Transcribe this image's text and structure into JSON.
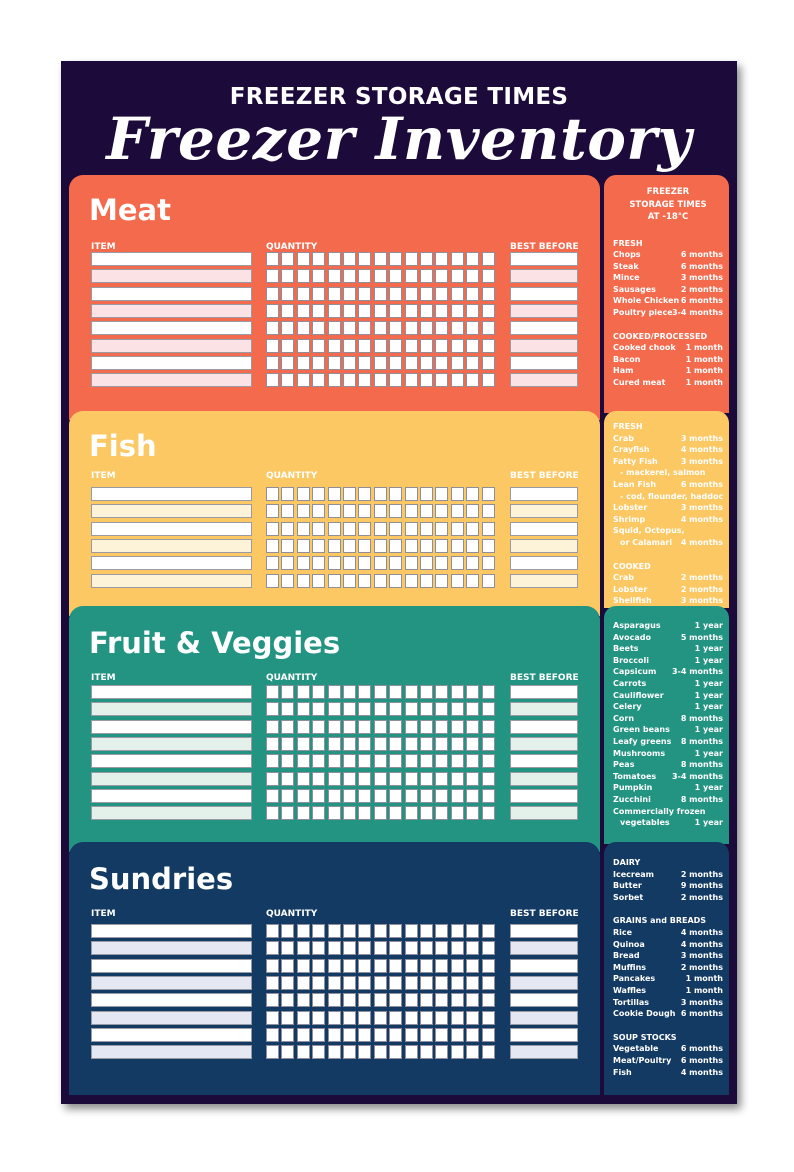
{
  "header": {
    "top_title": "FREEZER STORAGE TIMES",
    "script_title": "Freezer Inventory"
  },
  "columns": {
    "item": "ITEM",
    "quantity": "QUANTITY",
    "best_before": "BEST BEFORE"
  },
  "colors": {
    "background": "#1b0a3a",
    "meat": "#f46a4d",
    "fish": "#fbc863",
    "fruit_veggies": "#239482",
    "sundries": "#133a63"
  },
  "sections": {
    "meat": {
      "title": "Meat",
      "rows": 8,
      "quantity_cells": 15
    },
    "fish": {
      "title": "Fish",
      "rows": 6,
      "quantity_cells": 15
    },
    "veg": {
      "title": "Fruit & Veggies",
      "rows": 8,
      "quantity_cells": 15
    },
    "sund": {
      "title": "Sundries",
      "rows": 8,
      "quantity_cells": 15
    }
  },
  "side": {
    "meat": {
      "title_lines": [
        "FREEZER",
        "STORAGE TIMES",
        "AT -18°C"
      ],
      "groups": [
        {
          "heading": "FRESH",
          "items": [
            {
              "label": "Chops",
              "value": "6 months"
            },
            {
              "label": "Steak",
              "value": "6 months"
            },
            {
              "label": "Mince",
              "value": "3 months"
            },
            {
              "label": "Sausages",
              "value": "2 months"
            },
            {
              "label": "Whole Chicken",
              "value": "6 months"
            },
            {
              "label": "Poultry pieces",
              "value": "3-4 months"
            }
          ]
        },
        {
          "heading": "COOKED/PROCESSED",
          "items": [
            {
              "label": "Cooked chook",
              "value": "1 month"
            },
            {
              "label": "Bacon",
              "value": "1 month"
            },
            {
              "label": "Ham",
              "value": "1 month"
            },
            {
              "label": "Cured meat",
              "value": "1 month"
            }
          ]
        }
      ]
    },
    "fish": {
      "groups": [
        {
          "heading": "FRESH",
          "items": [
            {
              "label": "Crab",
              "value": "3 months"
            },
            {
              "label": "Crayfish",
              "value": "4 months"
            },
            {
              "label": "Fatty Fish",
              "value": "3 months"
            },
            {
              "label": "- mackerel, salmon",
              "value": "",
              "cont": true
            },
            {
              "label": "Lean Fish",
              "value": "6 months"
            },
            {
              "label": "- cod, flounder, haddock",
              "value": "",
              "cont": true
            },
            {
              "label": "Lobster",
              "value": "3 months"
            },
            {
              "label": "Shrimp",
              "value": "4 months"
            },
            {
              "label": "Squid, Octopus,",
              "value": ""
            },
            {
              "label": "or Calamari",
              "value": "4 months",
              "cont": true
            }
          ]
        },
        {
          "heading": "COOKED",
          "items": [
            {
              "label": "Crab",
              "value": "2 months"
            },
            {
              "label": "Lobster",
              "value": "2 months"
            },
            {
              "label": "Shellfish",
              "value": "3 months"
            }
          ]
        }
      ]
    },
    "veg": {
      "groups": [
        {
          "heading": "",
          "items": [
            {
              "label": "Asparagus",
              "value": "1 year"
            },
            {
              "label": "Avocado",
              "value": "5 months"
            },
            {
              "label": "Beets",
              "value": "1 year"
            },
            {
              "label": "Broccoli",
              "value": "1 year"
            },
            {
              "label": "Capsicum",
              "value": "3-4 months"
            },
            {
              "label": "Carrots",
              "value": "1 year"
            },
            {
              "label": "Cauliflower",
              "value": "1 year"
            },
            {
              "label": "Celery",
              "value": "1 year"
            },
            {
              "label": "Corn",
              "value": "8 months"
            },
            {
              "label": "Green beans",
              "value": "1 year"
            },
            {
              "label": "Leafy greens",
              "value": "8 months"
            },
            {
              "label": "Mushrooms",
              "value": "1 year"
            },
            {
              "label": "Peas",
              "value": "8 months"
            },
            {
              "label": "Tomatoes",
              "value": "3-4 months"
            },
            {
              "label": "Pumpkin",
              "value": "1 year"
            },
            {
              "label": "Zucchini",
              "value": "8 months"
            },
            {
              "label": "Commercially frozen",
              "value": ""
            },
            {
              "label": "vegetables",
              "value": "1 year",
              "cont": true
            }
          ]
        }
      ]
    },
    "sund": {
      "groups": [
        {
          "heading": "DAIRY",
          "items": [
            {
              "label": "Icecream",
              "value": "2 months"
            },
            {
              "label": "Butter",
              "value": "9 months"
            },
            {
              "label": "Sorbet",
              "value": "2 months"
            }
          ]
        },
        {
          "heading": "GRAINS and BREADS",
          "items": [
            {
              "label": "Rice",
              "value": "4 months"
            },
            {
              "label": "Quinoa",
              "value": "4 months"
            },
            {
              "label": "Bread",
              "value": "3 months"
            },
            {
              "label": "Muffins",
              "value": "2 months"
            },
            {
              "label": "Pancakes",
              "value": "1 month"
            },
            {
              "label": "Waffles",
              "value": "1 month"
            },
            {
              "label": "Tortillas",
              "value": "3 months"
            },
            {
              "label": "Cookie Dough",
              "value": "6 months"
            }
          ]
        },
        {
          "heading": "SOUP STOCKS",
          "items": [
            {
              "label": "Vegetable",
              "value": "6 months"
            },
            {
              "label": "Meat/Poultry",
              "value": "6 months"
            },
            {
              "label": "Fish",
              "value": "4 months"
            }
          ]
        }
      ]
    }
  }
}
